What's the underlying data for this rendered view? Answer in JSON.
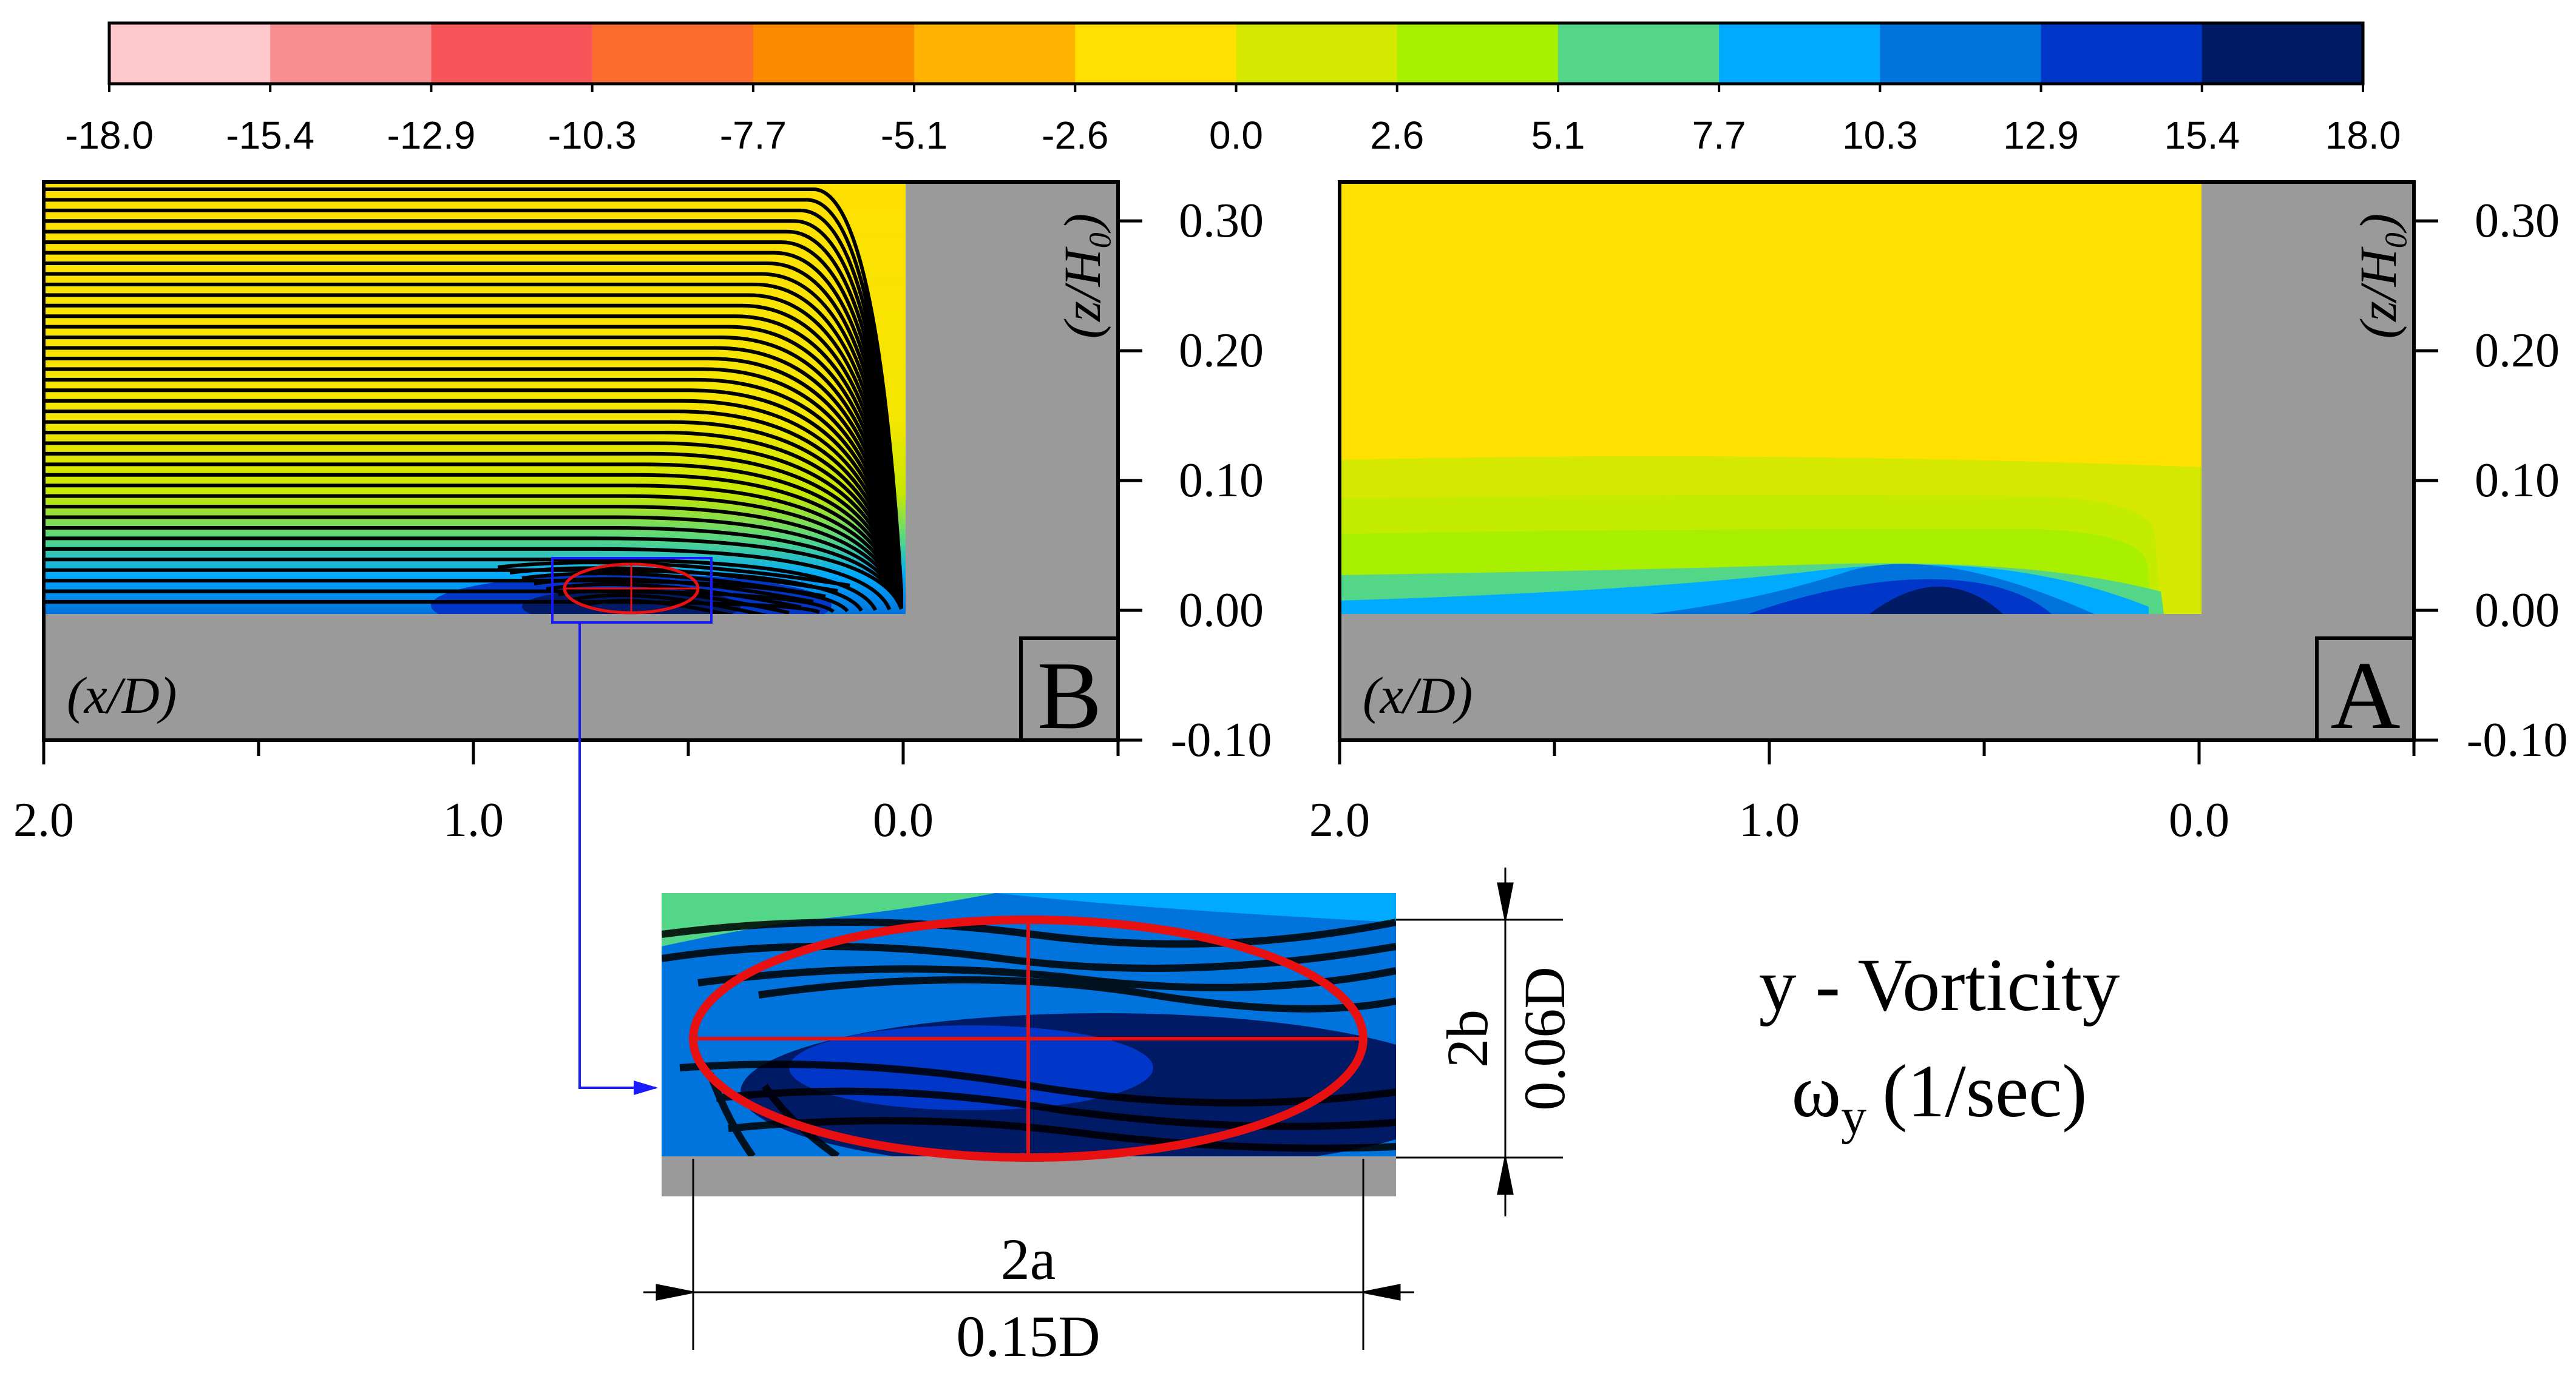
{
  "chart_data": {
    "type": "heatmap",
    "colorbar": {
      "tick_labels": [
        "-18.0",
        "-15.4",
        "-12.9",
        "-10.3",
        "-7.7",
        "-5.1",
        "-2.6",
        "0.0",
        "2.6",
        "5.1",
        "7.7",
        "10.3",
        "12.9",
        "15.4",
        "18.0"
      ],
      "colors": [
        "#ffc8cc",
        "#f88e8f",
        "#f65659",
        "#fb6c2d",
        "#fc8a00",
        "#ffb200",
        "#ffe000",
        "#d5e800",
        "#a8f000",
        "#53d688",
        "#00aaff",
        "#0073dd",
        "#0037c8",
        "#001a66"
      ],
      "range": [
        -18.0,
        18.0
      ]
    },
    "panels": [
      {
        "label": "B",
        "xlabel": "(x/D)",
        "ylabel": "(z/H₀)",
        "x_ticks": [
          "2.0",
          "1.0",
          "0.0"
        ],
        "y_ticks": [
          "0.30",
          "0.20",
          "0.10",
          "0.00",
          "-0.10"
        ],
        "xlim": [
          2.0,
          -0.5
        ],
        "ylim": [
          -0.1,
          0.33
        ],
        "streamlines": true
      },
      {
        "label": "A",
        "xlabel": "(x/D)",
        "ylabel": "(z/H₀)",
        "x_ticks": [
          "2.0",
          "1.0",
          "0.0"
        ],
        "y_ticks": [
          "0.30",
          "0.20",
          "0.10",
          "0.00",
          "-0.10"
        ],
        "xlim": [
          2.0,
          -0.5
        ],
        "ylim": [
          -0.1,
          0.33
        ],
        "streamlines": false
      }
    ],
    "inset": {
      "width_label": "2a",
      "width_value": "0.15D",
      "height_label": "2b",
      "height_value": "0.06D"
    },
    "title_line1": "y - Vorticity",
    "title_symbol": "ω",
    "title_subscript": "y",
    "title_unit": "(1/sec)"
  }
}
